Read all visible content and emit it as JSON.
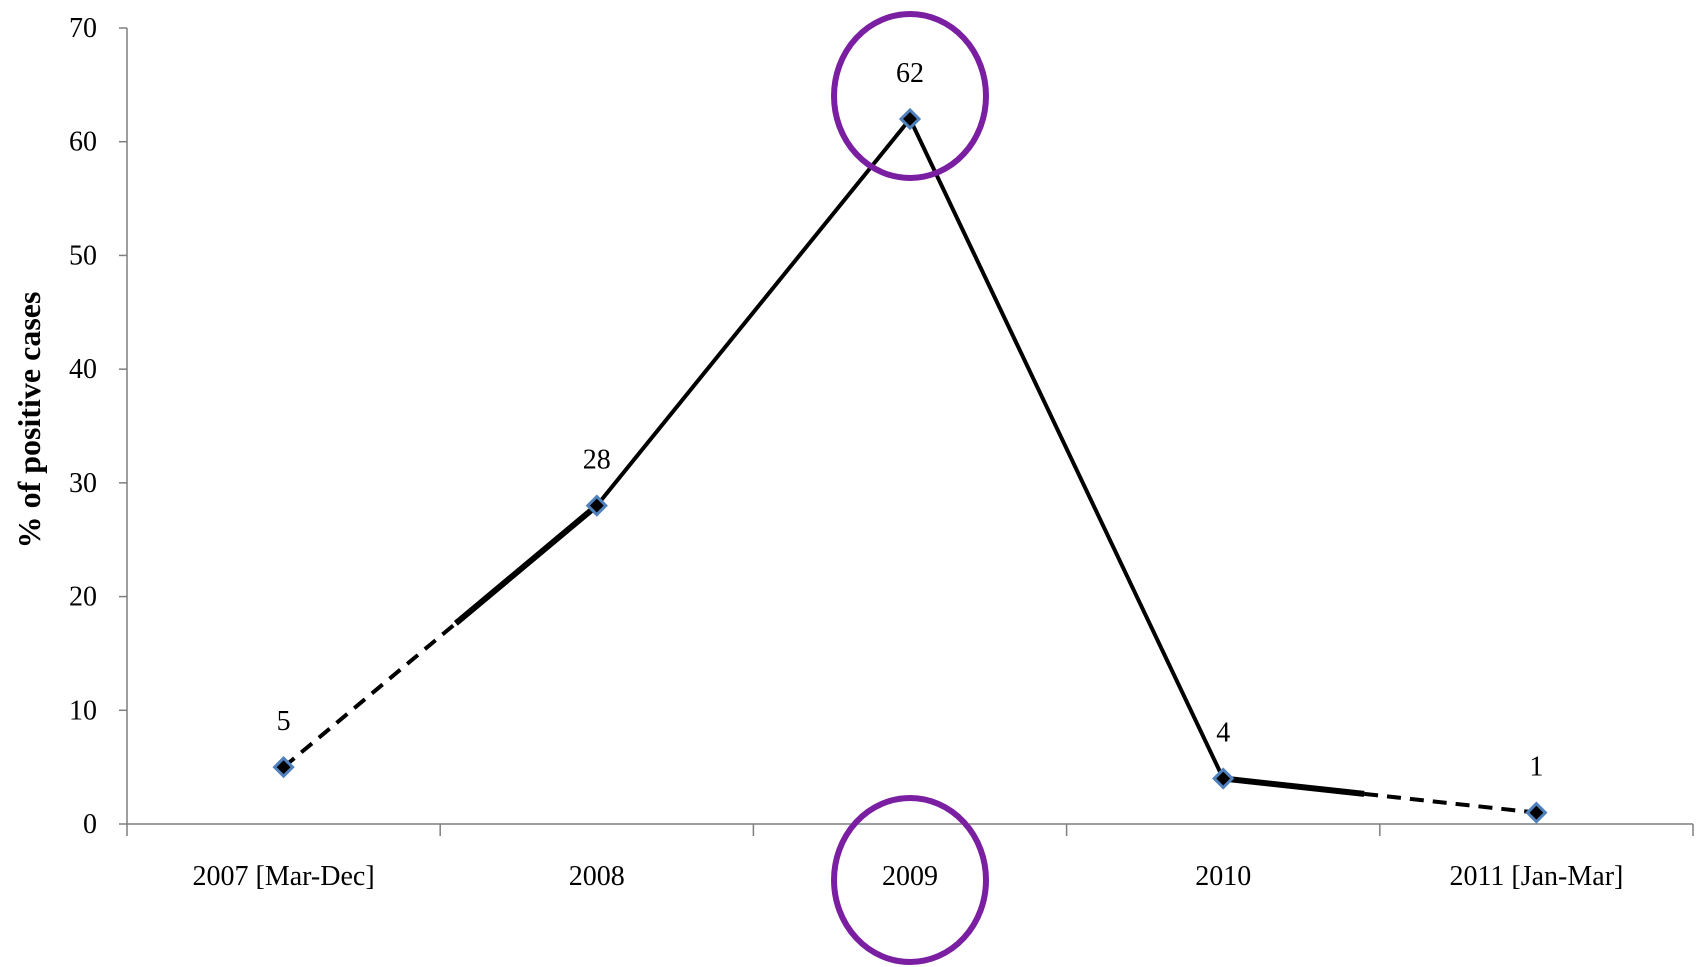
{
  "chart_data": {
    "type": "line",
    "title": "",
    "xlabel": "",
    "ylabel": "% of positive cases",
    "categories": [
      "2007 [Mar-Dec]",
      "2008",
      "2009",
      "2010",
      "2011 [Jan-Mar]"
    ],
    "series": [
      {
        "values": [
          5,
          28,
          62,
          4,
          1
        ],
        "data_labels": [
          "5",
          "28",
          "62",
          "4",
          "1"
        ]
      }
    ],
    "ylim": [
      0,
      70
    ],
    "yticks": [
      0,
      10,
      20,
      30,
      40,
      50,
      60,
      70
    ],
    "ytick_labels": [
      "0",
      "10",
      "20",
      "30",
      "40",
      "50",
      "60",
      "70"
    ],
    "grid": false,
    "legend": "none",
    "line_style": {
      "dashed_segments": [
        "2007 [Mar-Dec] to 2008 (first half)",
        "2010 to 2011 [Jan-Mar] (second half)"
      ]
    },
    "highlights": [
      {
        "category": "2009",
        "target": "data-point"
      },
      {
        "category": "2009",
        "target": "x-tick-label"
      }
    ],
    "colors": {
      "line": "#000000",
      "marker_fill": "#000000",
      "marker_stroke": "#4f81bd",
      "highlight": "#7b1fa2",
      "axis": "#7f7f7f"
    }
  }
}
